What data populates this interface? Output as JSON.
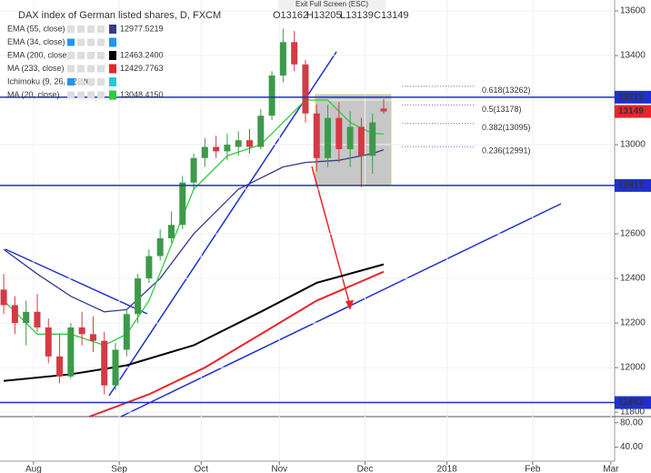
{
  "chart_data": {
    "type": "candlestick",
    "title": "DAX index of German listed shares, D, FXCM",
    "ohlc_text": [
      "O13162",
      "H13205",
      "L13139",
      "C13149"
    ],
    "fullscreen_hint": "Exit Full Screen (ESC)",
    "xlim": [
      0,
      165
    ],
    "xticks": [
      {
        "value": 9,
        "label": "Aug"
      },
      {
        "value": 32,
        "label": "Sep"
      },
      {
        "value": 54,
        "label": "Oct"
      },
      {
        "value": 75,
        "label": "Nov"
      },
      {
        "value": 98,
        "label": "Dec"
      },
      {
        "value": 120,
        "label": "2018"
      },
      {
        "value": 143,
        "label": "Feb"
      },
      {
        "value": 164,
        "label": "Mar"
      }
    ],
    "ylim": [
      11780,
      13649
    ],
    "yticks": [
      11800,
      12000,
      12200,
      12400,
      12600,
      12800,
      13000,
      13200,
      13400,
      13600
    ],
    "up_color": "#3d9a4a",
    "down_color": "#d43a44",
    "candles": [
      {
        "x": 1,
        "open": 12350,
        "high": 12420,
        "low": 12240,
        "close": 12280
      },
      {
        "x": 4,
        "open": 12280,
        "high": 12320,
        "low": 12150,
        "close": 12200
      },
      {
        "x": 7,
        "open": 12200,
        "high": 12300,
        "low": 12100,
        "close": 12250
      },
      {
        "x": 10,
        "open": 12250,
        "high": 12330,
        "low": 12160,
        "close": 12180
      },
      {
        "x": 13,
        "open": 12180,
        "high": 12220,
        "low": 12020,
        "close": 12050
      },
      {
        "x": 16,
        "open": 12050,
        "high": 12150,
        "low": 11930,
        "close": 11960
      },
      {
        "x": 19,
        "open": 11960,
        "high": 12200,
        "low": 11950,
        "close": 12180
      },
      {
        "x": 22,
        "open": 12180,
        "high": 12250,
        "low": 12100,
        "close": 12150
      },
      {
        "x": 25,
        "open": 12150,
        "high": 12230,
        "low": 12070,
        "close": 12120
      },
      {
        "x": 28,
        "open": 12120,
        "high": 12160,
        "low": 11880,
        "close": 11920
      },
      {
        "x": 31,
        "open": 11920,
        "high": 12110,
        "low": 11900,
        "close": 12080
      },
      {
        "x": 34,
        "open": 12080,
        "high": 12260,
        "low": 12050,
        "close": 12240
      },
      {
        "x": 37,
        "open": 12240,
        "high": 12420,
        "low": 12200,
        "close": 12400
      },
      {
        "x": 40,
        "open": 12400,
        "high": 12530,
        "low": 12380,
        "close": 12500
      },
      {
        "x": 43,
        "open": 12500,
        "high": 12620,
        "low": 12480,
        "close": 12580
      },
      {
        "x": 46,
        "open": 12580,
        "high": 12700,
        "low": 12560,
        "close": 12640
      },
      {
        "x": 49,
        "open": 12640,
        "high": 12860,
        "low": 12620,
        "close": 12830
      },
      {
        "x": 52,
        "open": 12830,
        "high": 12960,
        "low": 12800,
        "close": 12940
      },
      {
        "x": 55,
        "open": 12940,
        "high": 13030,
        "low": 12900,
        "close": 12990
      },
      {
        "x": 58,
        "open": 12990,
        "high": 13040,
        "low": 12940,
        "close": 12970
      },
      {
        "x": 61,
        "open": 12970,
        "high": 13050,
        "low": 12930,
        "close": 13000
      },
      {
        "x": 64,
        "open": 12990,
        "high": 13060,
        "low": 12950,
        "close": 13020
      },
      {
        "x": 67,
        "open": 13020,
        "high": 13070,
        "low": 12960,
        "close": 12990
      },
      {
        "x": 70,
        "open": 12990,
        "high": 13160,
        "low": 12980,
        "close": 13130
      },
      {
        "x": 73,
        "open": 13130,
        "high": 13330,
        "low": 13110,
        "close": 13310
      },
      {
        "x": 76,
        "open": 13310,
        "high": 13520,
        "low": 13280,
        "close": 13460
      },
      {
        "x": 79,
        "open": 13460,
        "high": 13510,
        "low": 13330,
        "close": 13360
      },
      {
        "x": 82,
        "open": 13360,
        "high": 13380,
        "low": 13100,
        "close": 13140
      },
      {
        "x": 85,
        "open": 13140,
        "high": 13180,
        "low": 12880,
        "close": 12940
      },
      {
        "x": 88,
        "open": 12940,
        "high": 13180,
        "low": 12900,
        "close": 13120
      },
      {
        "x": 91,
        "open": 13120,
        "high": 13190,
        "low": 12920,
        "close": 12980
      },
      {
        "x": 94,
        "open": 12980,
        "high": 13150,
        "low": 12900,
        "close": 13080
      },
      {
        "x": 97,
        "open": 13080,
        "high": 13120,
        "low": 12810,
        "close": 12950
      },
      {
        "x": 100,
        "open": 12950,
        "high": 13140,
        "low": 12870,
        "close": 13100
      },
      {
        "x": 103,
        "open": 13162,
        "high": 13205,
        "low": 13139,
        "close": 13149
      }
    ],
    "series": [
      {
        "name": "EMA (55, close)",
        "last_label": "12977.5219",
        "color": "#3a3a8c",
        "x": [
          1,
          10,
          19,
          28,
          34,
          43,
          52,
          64,
          76,
          82,
          91,
          100,
          103
        ],
        "values": [
          12530,
          12420,
          12320,
          12250,
          12260,
          12400,
          12600,
          12800,
          12900,
          12920,
          12930,
          12960,
          12977
        ]
      },
      {
        "name": "EMA (34, close)",
        "color": "#2196f3",
        "x": [],
        "values": []
      },
      {
        "name": "EMA (200, close)",
        "last_label": "12463.2400",
        "color": "#000000",
        "x": [
          1,
          19,
          34,
          52,
          70,
          85,
          103
        ],
        "values": [
          11940,
          11970,
          12010,
          12100,
          12250,
          12380,
          12463
        ]
      },
      {
        "name": "MA (233, close)",
        "last_label": "12429.7763",
        "color": "#e8252b",
        "x": [
          24,
          40,
          55,
          70,
          85,
          103
        ],
        "values": [
          11780,
          11880,
          12000,
          12150,
          12300,
          12430
        ]
      },
      {
        "name": "Ichimoku (9, 26, 52, 26)",
        "color": "#26c6da",
        "x": [],
        "values": []
      },
      {
        "name": "MA (20, close)",
        "last_label": "13048.4150",
        "color": "#2ecc40",
        "x": [
          1,
          10,
          19,
          28,
          34,
          40,
          46,
          52,
          61,
          70,
          76,
          82,
          88,
          94,
          100,
          103
        ],
        "values": [
          12300,
          12150,
          12150,
          12100,
          12150,
          12300,
          12550,
          12800,
          12950,
          13000,
          13100,
          13200,
          13200,
          13100,
          13050,
          13048
        ]
      }
    ],
    "levels": [
      13213,
      12817,
      11843
    ],
    "last_price": 13149,
    "fib_levels": [
      {
        "value": 13262,
        "label": "0.618(13262)"
      },
      {
        "value": 13178,
        "label": "0.5(13178)"
      },
      {
        "value": 13095,
        "label": "0.382(13095)"
      },
      {
        "value": 12991,
        "label": "0.236(12991)"
      }
    ],
    "lower_pane": {
      "ylim": [
        20,
        90
      ],
      "yticks": [
        {
          "value": 80,
          "label": "80.00"
        },
        {
          "value": 40,
          "label": "40.00"
        }
      ]
    }
  }
}
